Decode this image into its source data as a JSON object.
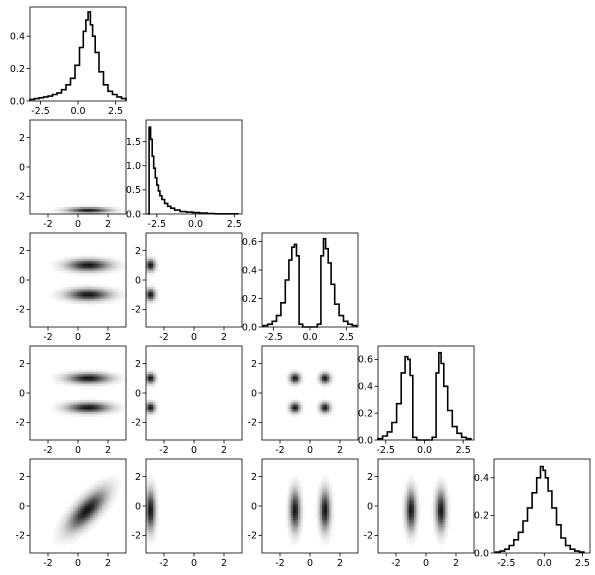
{
  "chart_data": {
    "type": "corner-plot",
    "title": "",
    "n_params": 5,
    "histogram_range": [
      -3.2,
      3.2
    ],
    "grid": false,
    "legend": "none",
    "diagonal": [
      {
        "type": "step-histogram",
        "xlim": [
          -3.2,
          3.2
        ],
        "ylim": [
          0,
          0.58
        ],
        "xticks": [
          -2.5,
          0.0,
          2.5
        ],
        "xtick_labels": [
          "-2.5",
          "0.0",
          "2.5"
        ],
        "yticks": [
          0.0,
          0.2,
          0.4
        ],
        "ytick_labels": [
          "0.0",
          "0.2",
          "0.4"
        ],
        "x": [
          -3.05,
          -2.75,
          -2.45,
          -2.15,
          -1.85,
          -1.55,
          -1.25,
          -0.95,
          -0.65,
          -0.35,
          -0.05,
          0.25,
          0.45,
          0.6,
          0.75,
          0.9,
          1.05,
          1.25,
          1.55,
          1.85,
          2.15,
          2.45,
          2.75,
          3.05
        ],
        "density": [
          0.01,
          0.015,
          0.02,
          0.025,
          0.03,
          0.04,
          0.05,
          0.07,
          0.1,
          0.14,
          0.22,
          0.33,
          0.43,
          0.5,
          0.55,
          0.47,
          0.4,
          0.3,
          0.18,
          0.1,
          0.06,
          0.04,
          0.025,
          0.015
        ]
      },
      {
        "type": "step-histogram",
        "xlim": [
          -3.2,
          3.0
        ],
        "ylim": [
          0,
          1.95
        ],
        "xticks": [
          -2.5,
          0.0,
          2.5
        ],
        "xtick_labels": [
          "-2.5",
          "0.0",
          "2.5"
        ],
        "yticks": [
          0.0,
          0.5,
          1.0,
          1.5
        ],
        "ytick_labels": [
          "0.0",
          "0.5",
          "1.0",
          "1.5"
        ],
        "x": [
          -3.05,
          -2.95,
          -2.85,
          -2.75,
          -2.65,
          -2.55,
          -2.45,
          -2.35,
          -2.25,
          -2.1,
          -1.9,
          -1.7,
          -1.5,
          -1.2,
          -0.8,
          -0.4,
          0.0,
          0.5,
          1.0,
          1.5,
          2.0,
          2.5
        ],
        "density": [
          0.0,
          1.8,
          1.55,
          1.2,
          0.95,
          0.75,
          0.6,
          0.48,
          0.38,
          0.3,
          0.22,
          0.16,
          0.12,
          0.08,
          0.05,
          0.04,
          0.03,
          0.02,
          0.01,
          0.005,
          0.005,
          0.005
        ]
      },
      {
        "type": "step-histogram",
        "xlim": [
          -3.3,
          3.3
        ],
        "ylim": [
          0,
          0.66
        ],
        "xticks": [
          -2.5,
          0.0,
          2.5
        ],
        "xtick_labels": [
          "-2.5",
          "0.0",
          "2.5"
        ],
        "yticks": [
          0.0,
          0.2,
          0.4,
          0.6
        ],
        "ytick_labels": [
          "0.0",
          "0.2",
          "0.4",
          "0.6"
        ],
        "x": [
          -3.05,
          -2.75,
          -2.45,
          -2.15,
          -1.85,
          -1.55,
          -1.35,
          -1.15,
          -1.0,
          -0.85,
          -0.65,
          -0.35,
          0.0,
          0.35,
          0.65,
          0.85,
          1.0,
          1.15,
          1.35,
          1.55,
          1.85,
          2.15,
          2.45,
          2.75,
          3.05
        ],
        "density": [
          0.01,
          0.02,
          0.04,
          0.08,
          0.17,
          0.33,
          0.47,
          0.56,
          0.58,
          0.5,
          0.02,
          0.0,
          0.0,
          0.0,
          0.02,
          0.5,
          0.62,
          0.55,
          0.45,
          0.3,
          0.16,
          0.08,
          0.04,
          0.02,
          0.01
        ]
      },
      {
        "type": "step-histogram",
        "xlim": [
          -3.0,
          3.2
        ],
        "ylim": [
          0,
          0.7
        ],
        "xticks": [
          -2.5,
          0.0,
          2.5
        ],
        "xtick_labels": [
          "-2.5",
          "0.0",
          "2.5"
        ],
        "yticks": [
          0.0,
          0.2,
          0.4,
          0.6
        ],
        "ytick_labels": [
          "0.0",
          "0.2",
          "0.4",
          "0.6"
        ],
        "x": [
          -2.85,
          -2.55,
          -2.25,
          -1.95,
          -1.65,
          -1.35,
          -1.15,
          -1.0,
          -0.85,
          -0.65,
          -0.35,
          0.0,
          0.35,
          0.65,
          0.85,
          1.0,
          1.15,
          1.35,
          1.65,
          1.95,
          2.25,
          2.55,
          2.85
        ],
        "density": [
          0.01,
          0.03,
          0.06,
          0.13,
          0.27,
          0.5,
          0.62,
          0.6,
          0.48,
          0.02,
          0.0,
          0.0,
          0.0,
          0.02,
          0.5,
          0.65,
          0.57,
          0.4,
          0.22,
          0.1,
          0.05,
          0.02,
          0.01
        ]
      },
      {
        "type": "step-histogram",
        "xlim": [
          -3.3,
          3.0
        ],
        "ylim": [
          0,
          0.5
        ],
        "xticks": [
          -2.5,
          0.0,
          2.5
        ],
        "xtick_labels": [
          "-2.5",
          "0.0",
          "2.5"
        ],
        "yticks": [
          0.0,
          0.2,
          0.4
        ],
        "ytick_labels": [
          "0.0",
          "0.2",
          "0.4"
        ],
        "x": [
          -3.05,
          -2.75,
          -2.45,
          -2.15,
          -1.85,
          -1.55,
          -1.25,
          -0.95,
          -0.65,
          -0.35,
          -0.15,
          0.0,
          0.15,
          0.35,
          0.65,
          0.95,
          1.25,
          1.55,
          1.85,
          2.15,
          2.45
        ],
        "density": [
          0.005,
          0.01,
          0.02,
          0.04,
          0.07,
          0.11,
          0.17,
          0.24,
          0.32,
          0.4,
          0.46,
          0.44,
          0.4,
          0.33,
          0.24,
          0.15,
          0.08,
          0.04,
          0.02,
          0.01,
          0.005
        ]
      }
    ],
    "off_diagonal": {
      "type": "2d-histogram",
      "colormap": "greys",
      "xlim": [
        -3.2,
        3.2
      ],
      "ylim": [
        -3.2,
        3.2
      ],
      "xticks": [
        -2,
        0,
        2
      ],
      "xtick_labels": [
        "-2",
        "0",
        "2"
      ],
      "yticks": [
        -2,
        0,
        2
      ],
      "ytick_labels": [
        "-2",
        "0",
        "2"
      ],
      "cells": {
        "1-0": {
          "clusters": [
            {
              "x": 0.7,
              "y": -2.95,
              "sx": 0.9,
              "sy": 0.12,
              "w": 1.0
            }
          ]
        },
        "2-0": {
          "clusters": [
            {
              "x": 0.7,
              "y": 1.0,
              "sx": 0.9,
              "sy": 0.25,
              "w": 1.0
            },
            {
              "x": 0.7,
              "y": -1.0,
              "sx": 0.9,
              "sy": 0.25,
              "w": 1.0
            }
          ]
        },
        "2-1": {
          "clusters": [
            {
              "x": -2.9,
              "y": 1.0,
              "sx": 0.2,
              "sy": 0.25,
              "w": 0.7
            },
            {
              "x": -2.9,
              "y": -1.0,
              "sx": 0.2,
              "sy": 0.25,
              "w": 0.7
            }
          ]
        },
        "3-0": {
          "clusters": [
            {
              "x": 0.7,
              "y": 1.0,
              "sx": 0.9,
              "sy": 0.22,
              "w": 1.0
            },
            {
              "x": 0.7,
              "y": -1.0,
              "sx": 0.9,
              "sy": 0.22,
              "w": 1.0
            }
          ]
        },
        "3-1": {
          "clusters": [
            {
              "x": -2.9,
              "y": 1.0,
              "sx": 0.2,
              "sy": 0.22,
              "w": 0.6
            },
            {
              "x": -2.9,
              "y": -1.0,
              "sx": 0.2,
              "sy": 0.22,
              "w": 0.6
            }
          ]
        },
        "3-2": {
          "clusters": [
            {
              "x": -1.0,
              "y": 1.0,
              "sx": 0.22,
              "sy": 0.22,
              "w": 1.0
            },
            {
              "x": 1.0,
              "y": 1.0,
              "sx": 0.22,
              "sy": 0.22,
              "w": 1.0
            },
            {
              "x": -1.0,
              "y": -1.0,
              "sx": 0.22,
              "sy": 0.22,
              "w": 1.0
            },
            {
              "x": 1.0,
              "y": -1.0,
              "sx": 0.22,
              "sy": 0.22,
              "w": 1.0
            }
          ]
        },
        "4-0": {
          "clusters": [
            {
              "x": 0.6,
              "y": -0.3,
              "sx": 0.8,
              "sy": 0.85,
              "w": 1.0,
              "rho": 0.75
            }
          ]
        },
        "4-1": {
          "clusters": [
            {
              "x": -2.9,
              "y": -0.3,
              "sx": 0.2,
              "sy": 0.85,
              "w": 0.6
            }
          ]
        },
        "4-2": {
          "clusters": [
            {
              "x": -1.0,
              "y": -0.3,
              "sx": 0.22,
              "sy": 0.85,
              "w": 1.0
            },
            {
              "x": 1.0,
              "y": -0.3,
              "sx": 0.22,
              "sy": 0.85,
              "w": 1.0
            }
          ]
        },
        "4-3": {
          "clusters": [
            {
              "x": -1.0,
              "y": -0.3,
              "sx": 0.22,
              "sy": 0.85,
              "w": 1.0
            },
            {
              "x": 1.0,
              "y": -0.3,
              "sx": 0.22,
              "sy": 0.85,
              "w": 1.0
            }
          ]
        }
      }
    }
  }
}
